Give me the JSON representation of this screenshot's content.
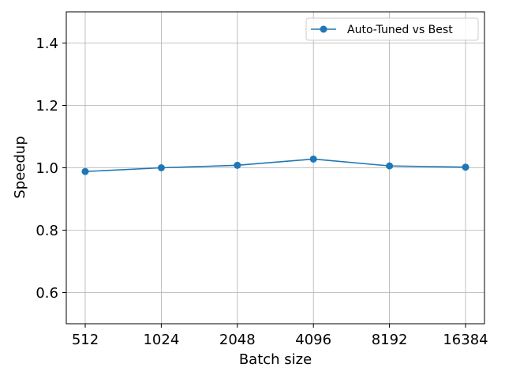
{
  "chart_data": {
    "type": "line",
    "categories": [
      "512",
      "1024",
      "2048",
      "4096",
      "8192",
      "16384"
    ],
    "series": [
      {
        "name": "Auto-Tuned vs Best",
        "values": [
          0.988,
          1.0,
          1.008,
          1.028,
          1.006,
          1.002
        ],
        "color": "#1f77b4",
        "marker": "circle"
      }
    ],
    "title": "",
    "xlabel": "Batch size",
    "ylabel": "Speedup",
    "ylim": [
      0.5,
      1.5
    ],
    "yticks": [
      "0.6",
      "0.8",
      "1.0",
      "1.2",
      "1.4"
    ],
    "grid": true,
    "legend_position": "top-right"
  }
}
